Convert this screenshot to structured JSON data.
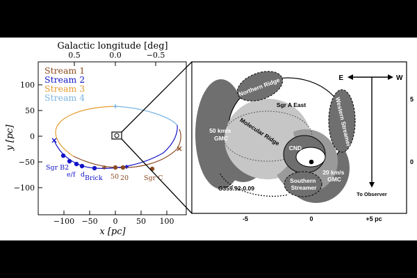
{
  "left_panel": {
    "top_axis_title": "Galactic longitude [deg]",
    "top_ticks": [
      "0.5",
      "0.0",
      "−0.5"
    ],
    "y_axis_title": "y [pc]",
    "x_axis_title": "x [pc]",
    "y_ticks": [
      "100",
      "50",
      "0",
      "−50",
      "−100"
    ],
    "x_ticks": [
      "−100",
      "−50",
      "0",
      "50",
      "100"
    ],
    "legend": [
      {
        "label": "Stream 1",
        "color": "#8b4a22"
      },
      {
        "label": "Stream 2",
        "color": "#1212c8"
      },
      {
        "label": "Stream 3",
        "color": "#e59a2c"
      },
      {
        "label": "Stream 4",
        "color": "#7ab4e2"
      }
    ],
    "point_labels": {
      "sgr_b2": "Sgr B2",
      "ef": "e/f",
      "d": "d",
      "brick": "Brick",
      "fifty": "50",
      "twenty": "20",
      "sgr_c": "Sgr C"
    }
  },
  "right_panel": {
    "labels": {
      "northern_ridge": "Northern Ridge",
      "sgr_a_east": "Sgr A East",
      "western_streamer": "Western Streamer",
      "fifty_gmc": "50 km/s\nGMC",
      "molecular_ridge": "Molecular Ridge",
      "cnd": "CND",
      "southern_streamer": "Southern\nStreamer",
      "twenty_gmc": "20 km/s\nGMC",
      "g359": "G359.92-0.09",
      "to_observer": "To Observer",
      "east": "E",
      "west": "W"
    },
    "x_ticks": [
      "-5",
      "0",
      "+5 pc"
    ],
    "y_ticks": [
      "5",
      "0"
    ]
  },
  "colors": {
    "stream1": "#8b4a22",
    "stream2": "#1212c8",
    "stream3": "#e59a2c",
    "stream4": "#7ab4e2",
    "dark_gray": "#6f6f6f",
    "mid_gray": "#9a9a9a",
    "light_gray": "#c6c6c6"
  }
}
